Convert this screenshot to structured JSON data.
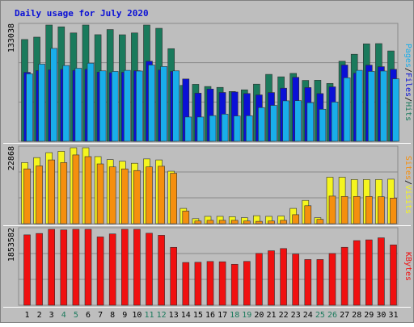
{
  "chart_data": {
    "type": "bar",
    "title": "Daily usage for July 2020",
    "categories": [
      "1",
      "2",
      "3",
      "4",
      "5",
      "6",
      "7",
      "8",
      "9",
      "10",
      "11",
      "12",
      "13",
      "14",
      "15",
      "16",
      "17",
      "18",
      "19",
      "20",
      "21",
      "22",
      "23",
      "24",
      "25",
      "26",
      "27",
      "28",
      "29",
      "30",
      "31"
    ],
    "weekend_days": [
      "4",
      "5",
      "11",
      "12",
      "18",
      "19",
      "25",
      "26"
    ],
    "panels": [
      {
        "name": "hits-files-pages",
        "axis_max_label": "133038",
        "ylim": [
          0,
          133038
        ],
        "right_labels": [
          "Pages",
          "Files",
          "Hits"
        ],
        "series": [
          {
            "name": "Hits",
            "color": "#1a7a5c",
            "values": [
              116500,
              119200,
              134000,
              131000,
              124000,
              135200,
              122000,
              127900,
              121900,
              124000,
              134000,
              129300,
              106000,
              64000,
              65200,
              62700,
              61700,
              57000,
              58900,
              65400,
              76600,
              73800,
              77700,
              69700,
              69900,
              66200,
              91600,
              99600,
              111500,
              111800,
              103400
            ]
          },
          {
            "name": "Files",
            "color": "#0a10d6",
            "values": [
              78900,
              81000,
              81800,
              82400,
              81200,
              82400,
              79200,
              78500,
              79000,
              80800,
              91600,
              81600,
              80000,
              71300,
              55100,
              59800,
              55900,
              56400,
              54700,
              53100,
              55800,
              60800,
              73200,
              61500,
              54600,
              62300,
              87300,
              78000,
              87200,
              85400,
              82400
            ]
          },
          {
            "name": "Pages",
            "color": "#19aeea",
            "values": [
              77200,
              88300,
              106300,
              86700,
              83600,
              89400,
              80600,
              80000,
              81200,
              80400,
              87300,
              85600,
              80600,
              27800,
              27800,
              29400,
              31100,
              29000,
              29300,
              38600,
              41100,
              46300,
              46500,
              44200,
              36700,
              44900,
              72700,
              81200,
              80000,
              80400,
              71500
            ]
          }
        ]
      },
      {
        "name": "visits-sites",
        "axis_max_label": "22868",
        "ylim": [
          0,
          22868
        ],
        "right_labels": [
          "Sites",
          "/",
          "Visits"
        ],
        "series": [
          {
            "name": "Visits",
            "color": "#f5f51e",
            "values": [
              18400,
              19900,
              21400,
              21800,
              23000,
              23100,
              20200,
              19300,
              18800,
              18200,
              19500,
              19200,
              15800,
              4600,
              1500,
              2200,
              2200,
              2100,
              1800,
              2400,
              2200,
              2300,
              4600,
              7000,
              1800,
              14000,
              14000,
              13300,
              13300,
              13300,
              13400
            ]
          },
          {
            "name": "Sites",
            "color": "#f58f0e",
            "values": [
              16500,
              17400,
              19200,
              18400,
              20700,
              20200,
              18000,
              17100,
              16500,
              16000,
              17100,
              17300,
              15200,
              3800,
              800,
              1000,
              1000,
              1000,
              800,
              700,
              800,
              1000,
              2700,
              5400,
              1300,
              8300,
              8200,
              8200,
              8200,
              8100,
              7700
            ]
          }
        ]
      },
      {
        "name": "kbytes",
        "axis_max_label": "1853582",
        "ylim": [
          0,
          1853582
        ],
        "right_labels": [
          "KBytes"
        ],
        "series": [
          {
            "name": "KBytes",
            "color": "#f01010",
            "values": [
              1718000,
              1752000,
              1888000,
              1839000,
              1865000,
              1866000,
              1668000,
              1741000,
              1878000,
              1862000,
              1758000,
              1708000,
              1414000,
              1044000,
              1049000,
              1068000,
              1061000,
              1000000,
              1070000,
              1266000,
              1330000,
              1384000,
              1250000,
              1116000,
              1116000,
              1263000,
              1415000,
              1578000,
              1596000,
              1646000,
              1473000
            ]
          }
        ]
      }
    ]
  },
  "colors": {
    "frame_bg": "#bebebe",
    "plot_bg": "#bebebe",
    "title": "#0a10d6",
    "weekday_label": "#000000",
    "weekend_label": "#1a7a5c",
    "separator": "#ffffff",
    "gridline": "#8a8a8a"
  }
}
